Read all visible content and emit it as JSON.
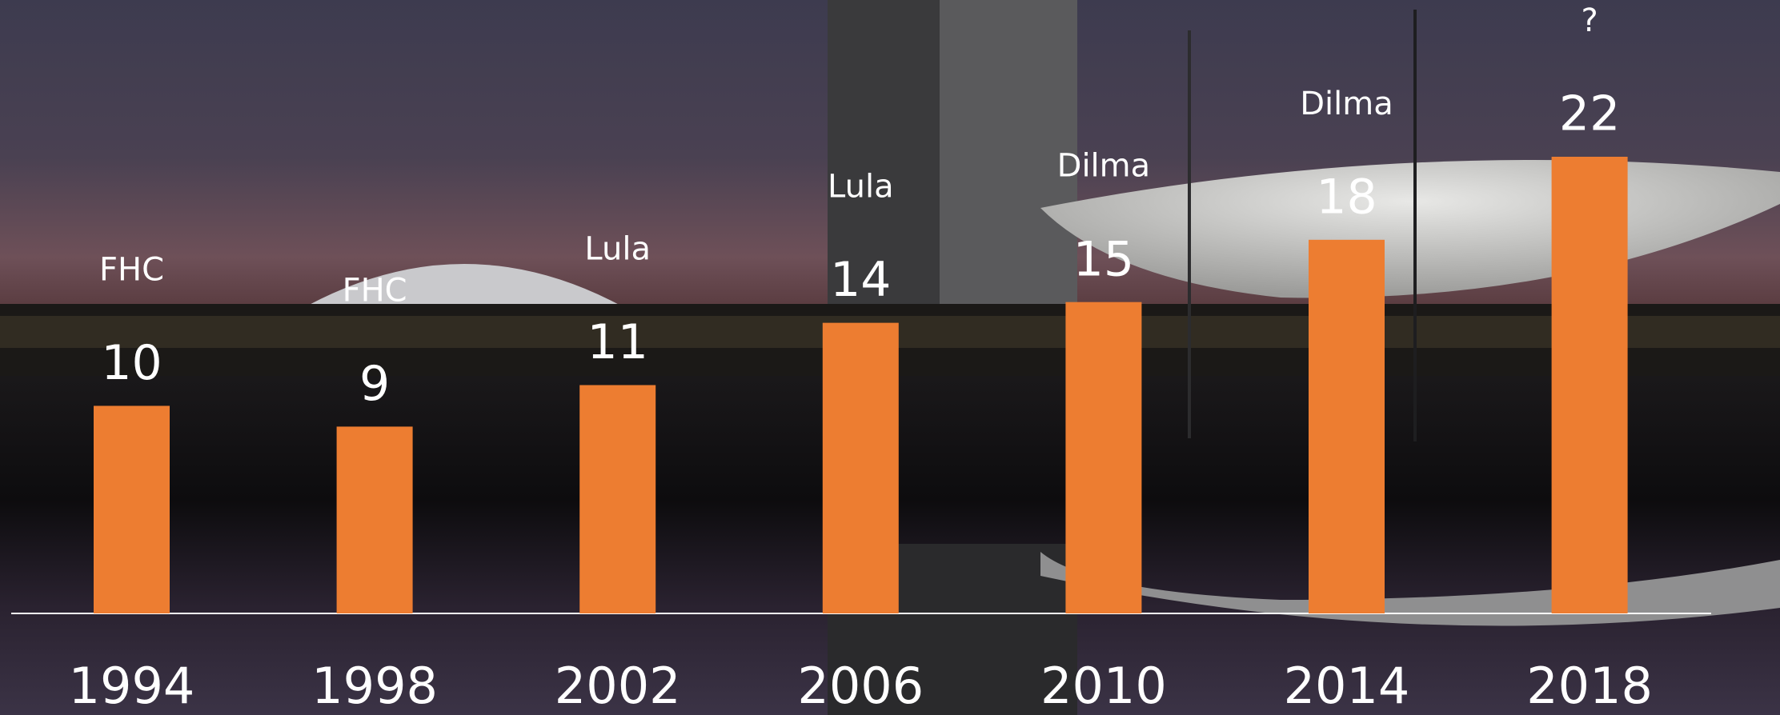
{
  "chart_data": {
    "type": "bar",
    "categories": [
      "1994",
      "1998",
      "2002",
      "2006",
      "2010",
      "2014",
      "2018"
    ],
    "values": [
      10,
      9,
      11,
      14,
      15,
      18,
      22
    ],
    "annotations": [
      "FHC",
      "FHC",
      "Lula",
      "Lula",
      "Dilma",
      "Dilma",
      "?"
    ],
    "color": "#ed7d31"
  }
}
